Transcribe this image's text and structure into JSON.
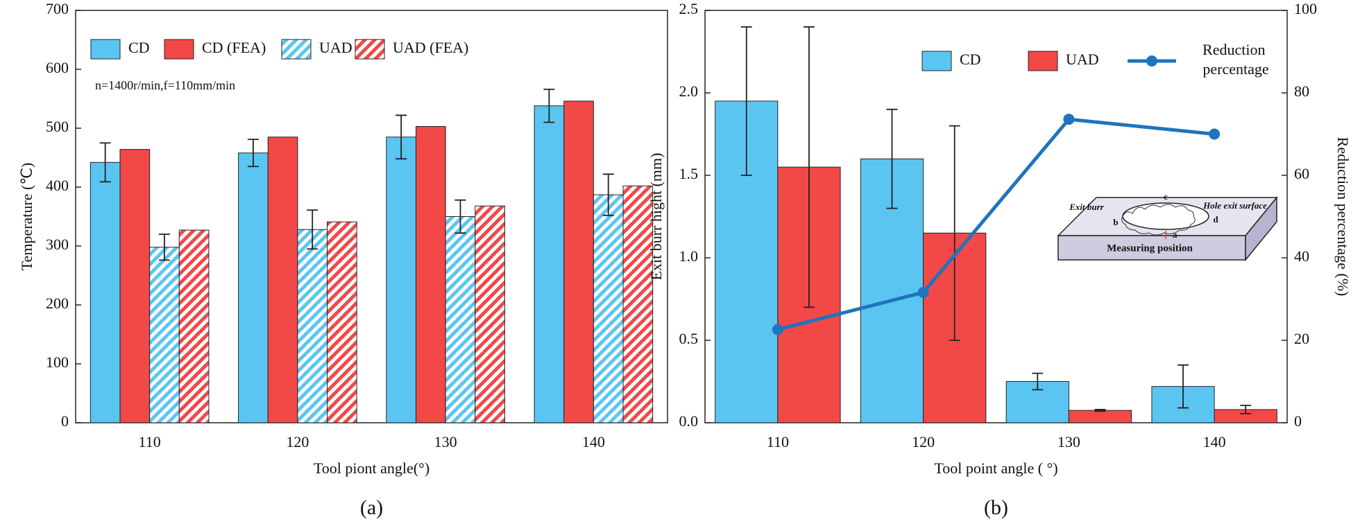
{
  "chart_data": [
    {
      "type": "bar",
      "caption": "(a)",
      "x_label": "Tool piont angle(°)",
      "y_label": "Temperature (℃)",
      "annotation": "n=1400r/min,f=110mm/min",
      "legend": "upper left",
      "categories": [
        "110",
        "120",
        "130",
        "140"
      ],
      "ylim": [
        0,
        700
      ],
      "yticks": [
        0,
        100,
        200,
        300,
        400,
        500,
        600,
        700
      ],
      "series": [
        {
          "name": "CD",
          "color": "#5bc5f2",
          "hatch": false,
          "values": [
            442,
            458,
            485,
            538
          ],
          "errors": [
            33,
            23,
            37,
            28
          ]
        },
        {
          "name": "CD (FEA)",
          "color": "#f24848",
          "hatch": false,
          "values": [
            464,
            485,
            503,
            546
          ]
        },
        {
          "name": "UAD",
          "color": "#5bc5f2",
          "hatch": true,
          "values": [
            298,
            328,
            350,
            387
          ],
          "errors": [
            22,
            33,
            28,
            35
          ]
        },
        {
          "name": "UAD (FEA)",
          "color": "#f24848",
          "hatch": true,
          "values": [
            327,
            341,
            368,
            402
          ]
        }
      ]
    },
    {
      "type": "bar",
      "caption": "(b)",
      "x_label": "Tool point angle ( °)",
      "y_label": "Exit burr hight (mm)",
      "y2_label": "Reduction percentage (%)",
      "legend": "upper right",
      "categories": [
        "110",
        "120",
        "130",
        "140"
      ],
      "ylim": [
        0,
        2.5
      ],
      "yticks": [
        {
          "value": 0,
          "label": "0.0"
        },
        0.5,
        {
          "value": 1,
          "label": "1.0"
        },
        1.5,
        {
          "value": 2,
          "label": "2.0"
        },
        2.5
      ],
      "y2lim": [
        0,
        100
      ],
      "y2ticks": [
        0,
        20,
        40,
        60,
        80,
        100
      ],
      "inset_labels": {
        "burr": "Exit burr",
        "surface": "Hole exit surface",
        "position": "Measuring position",
        "a": "a",
        "b": "b",
        "c": "c",
        "d": "d"
      },
      "series": [
        {
          "name": "CD",
          "color": "#5bc5f2",
          "hatch": false,
          "values": [
            1.95,
            1.6,
            0.25,
            0.22
          ],
          "errors": [
            0.45,
            0.3,
            0.05,
            0.13
          ]
        },
        {
          "name": "UAD",
          "color": "#f24848",
          "hatch": false,
          "values": [
            1.55,
            1.15,
            0.075,
            0.08
          ],
          "errors": [
            0.85,
            0.65,
            0.005,
            0.025
          ]
        },
        {
          "name": "Reduction percentage",
          "color": "#1f74bd",
          "axis": "y2",
          "type": "line",
          "values": [
            22.6,
            31.6,
            73.6,
            70.0
          ]
        }
      ]
    }
  ]
}
